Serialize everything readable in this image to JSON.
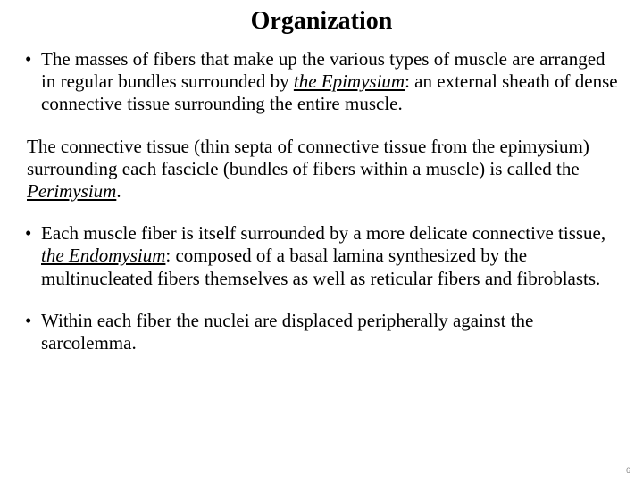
{
  "title": "Organization",
  "bullets": {
    "b1_pre": "The masses of fibers that make up the various types of muscle are arranged in regular bundles surrounded by ",
    "b1_term": "the Epimysium",
    "b1_post": ": an external sheath of dense connective tissue surrounding the entire muscle."
  },
  "para": {
    "p1_pre": " The connective tissue (thin septa of connective tissue from the epimysium) surrounding each fascicle (bundles of fibers within a muscle) is called the ",
    "p1_term": "Perimysium",
    "p1_post": "."
  },
  "bullets2": {
    "b2_pre": "Each muscle fiber is itself surrounded by a more delicate connective tissue, ",
    "b2_term": "the Endomysium",
    "b2_post": ": composed of a basal lamina synthesized by the multinucleated fibers themselves as well as reticular fibers and fibroblasts."
  },
  "bullets3": {
    "b3": "Within each fiber the nuclei are displaced peripherally against the sarcolemma."
  },
  "dot": "•",
  "pagenum": "6",
  "style": {
    "background": "#ffffff",
    "text_color": "#000000",
    "title_fontsize": 28,
    "body_fontsize": 21,
    "font_family": "Times New Roman"
  }
}
